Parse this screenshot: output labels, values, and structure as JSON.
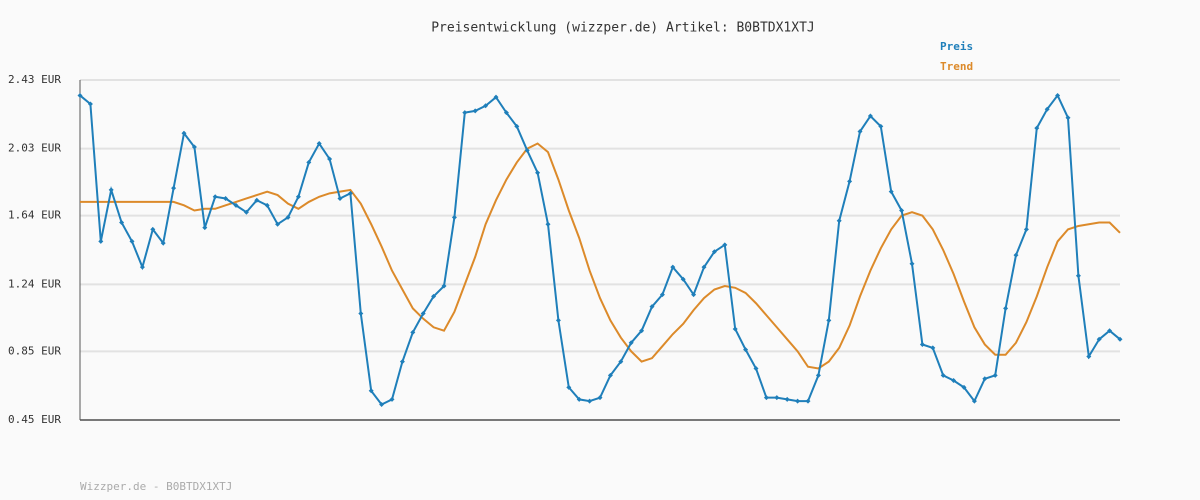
{
  "chart_data": {
    "type": "line",
    "title": "Preisentwicklung (wizzper.de) Artikel: B0BTDX1XTJ",
    "footer": "Wizzper.de - B0BTDX1XTJ",
    "ylim": [
      0.45,
      2.43
    ],
    "yticks": [
      {
        "value": 0.45,
        "label": "0.45 EUR"
      },
      {
        "value": 0.85,
        "label": "0.85 EUR"
      },
      {
        "value": 1.24,
        "label": "1.24 EUR"
      },
      {
        "value": 1.64,
        "label": "1.64 EUR"
      },
      {
        "value": 2.03,
        "label": "2.03 EUR"
      },
      {
        "value": 2.43,
        "label": "2.43 EUR"
      }
    ],
    "grid": true,
    "legend": "top-right",
    "series": [
      {
        "name": "Preis",
        "color": "#1f7fba",
        "markers": true,
        "values": [
          2.34,
          2.29,
          1.49,
          1.79,
          1.6,
          1.49,
          1.34,
          1.56,
          1.48,
          1.8,
          2.12,
          2.04,
          1.57,
          1.75,
          1.74,
          1.7,
          1.66,
          1.73,
          1.7,
          1.59,
          1.63,
          1.75,
          1.95,
          2.06,
          1.97,
          1.74,
          1.77,
          1.07,
          0.62,
          0.54,
          0.57,
          0.79,
          0.96,
          1.07,
          1.17,
          1.23,
          1.63,
          2.24,
          2.25,
          2.28,
          2.33,
          2.24,
          2.16,
          2.02,
          1.89,
          1.59,
          1.03,
          0.64,
          0.57,
          0.56,
          0.58,
          0.71,
          0.79,
          0.9,
          0.97,
          1.11,
          1.18,
          1.34,
          1.27,
          1.18,
          1.34,
          1.43,
          1.47,
          0.98,
          0.86,
          0.75,
          0.58,
          0.58,
          0.57,
          0.56,
          0.56,
          0.71,
          1.03,
          1.61,
          1.84,
          2.13,
          2.22,
          2.16,
          1.78,
          1.67,
          1.36,
          0.89,
          0.87,
          0.71,
          0.68,
          0.64,
          0.56,
          0.69,
          0.71,
          1.1,
          1.41,
          1.56,
          2.15,
          2.26,
          2.34,
          2.21,
          1.29,
          0.82,
          0.92,
          0.97,
          0.92
        ]
      },
      {
        "name": "Trend",
        "color": "#dc8a2a",
        "markers": false,
        "values": [
          1.72,
          1.72,
          1.72,
          1.72,
          1.72,
          1.72,
          1.72,
          1.72,
          1.72,
          1.72,
          1.7,
          1.67,
          1.68,
          1.68,
          1.7,
          1.72,
          1.74,
          1.76,
          1.78,
          1.76,
          1.71,
          1.68,
          1.72,
          1.75,
          1.77,
          1.78,
          1.79,
          1.71,
          1.59,
          1.46,
          1.32,
          1.21,
          1.1,
          1.04,
          0.99,
          0.97,
          1.08,
          1.24,
          1.4,
          1.59,
          1.73,
          1.85,
          1.95,
          2.03,
          2.06,
          2.01,
          1.85,
          1.67,
          1.51,
          1.32,
          1.16,
          1.03,
          0.93,
          0.85,
          0.79,
          0.81,
          0.88,
          0.95,
          1.01,
          1.09,
          1.16,
          1.21,
          1.23,
          1.22,
          1.19,
          1.13,
          1.06,
          0.99,
          0.92,
          0.85,
          0.76,
          0.75,
          0.79,
          0.87,
          1.0,
          1.17,
          1.32,
          1.45,
          1.56,
          1.64,
          1.66,
          1.64,
          1.56,
          1.44,
          1.3,
          1.14,
          0.99,
          0.89,
          0.83,
          0.83,
          0.9,
          1.02,
          1.17,
          1.34,
          1.49,
          1.56,
          1.58,
          1.59,
          1.6,
          1.6,
          1.54
        ]
      }
    ]
  }
}
